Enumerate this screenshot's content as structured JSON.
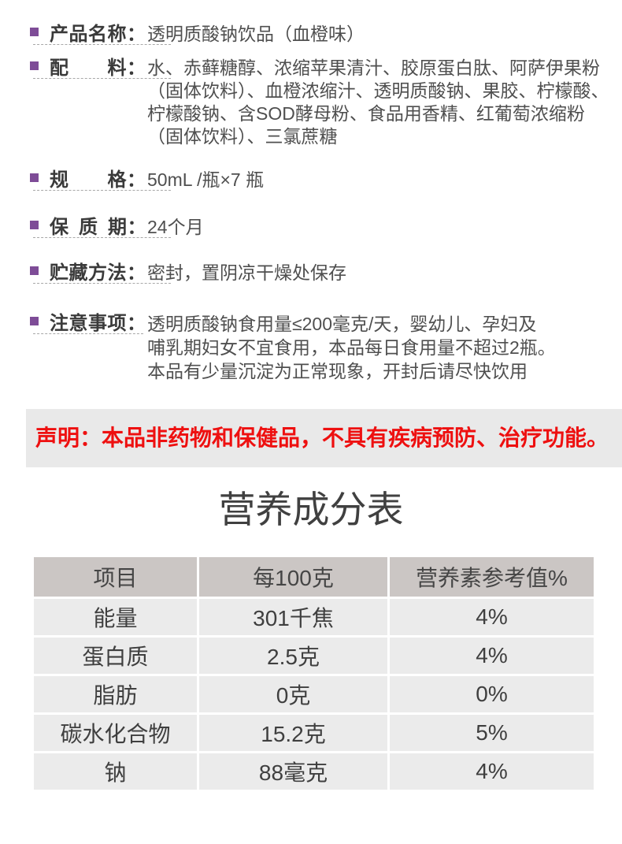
{
  "colors": {
    "accent_purple": "#7e4c97",
    "label_text": "#3a3a3a",
    "value_text": "#4f4f4f",
    "disclaimer_bg": "#e9e9e9",
    "disclaimer_red": "#ee1010",
    "table_header_bg": "#cbc6c4",
    "table_row_bg": "#ebebeb"
  },
  "info_sections": [
    {
      "id": "product-name",
      "label": "产品名称：",
      "value": "透明质酸钠饮品（血橙味）"
    },
    {
      "id": "ingredients",
      "label": "配　　料：",
      "value": "水、赤藓糖醇、浓缩苹果清汁、胶原蛋白肽、阿萨伊果粉\n（固体饮料）、血橙浓缩汁、透明质酸钠、果胶、柠檬酸、\n柠檬酸钠、含SOD酵母粉、食品用香精、红葡萄浓缩粉\n（固体饮料）、三氯蔗糖"
    },
    {
      "id": "specification",
      "label": "规　　格：",
      "value": "50mL /瓶×7 瓶"
    },
    {
      "id": "shelf-life",
      "label": "保 质 期：",
      "value": "24个月"
    },
    {
      "id": "storage",
      "label": "贮藏方法：",
      "value": "密封，置阴凉干燥处保存"
    },
    {
      "id": "precautions",
      "label": "注意事项：",
      "value": "透明质酸钠食用量≤200毫克/天，婴幼儿、孕妇及\n哺乳期妇女不宜食用，本品每日食用量不超过2瓶。\n本品有少量沉淀为正常现象，开封后请尽快饮用"
    }
  ],
  "disclaimer": {
    "text": "声明：本品非药物和保健品，不具有疾病预防、治疗功能。"
  },
  "nutrition": {
    "title": "营养成分表",
    "headers": [
      "项目",
      "每100克",
      "营养素参考值%"
    ],
    "rows": [
      [
        "能量",
        "301千焦",
        "4%"
      ],
      [
        "蛋白质",
        "2.5克",
        "4%"
      ],
      [
        "脂肪",
        "0克",
        "0%"
      ],
      [
        "碳水化合物",
        "15.2克",
        "5%"
      ],
      [
        "钠",
        "88毫克",
        "4%"
      ]
    ]
  }
}
